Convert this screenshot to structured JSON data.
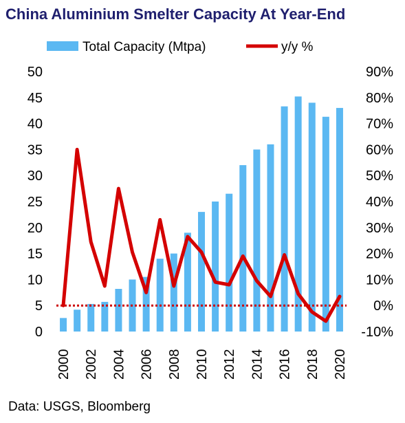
{
  "title": "China Aluminium Smelter Capacity At Year-End",
  "source": "Data: USGS, Bloomberg",
  "colors": {
    "bars": "#5bb8f2",
    "line": "#d40000",
    "zero_line": "#cc0000",
    "title": "#1f1f6e"
  },
  "chart_data": {
    "type": "bar",
    "title": "China Aluminium Smelter Capacity At Year-End",
    "categories": [
      "2000",
      "2001",
      "2002",
      "2003",
      "2004",
      "2005",
      "2006",
      "2007",
      "2008",
      "2009",
      "2010",
      "2011",
      "2012",
      "2013",
      "2014",
      "2015",
      "2016",
      "2017",
      "2018",
      "2019",
      "2020"
    ],
    "x_tick_labels": [
      "2000",
      "2002",
      "2004",
      "2006",
      "2008",
      "2010",
      "2012",
      "2014",
      "2016",
      "2018",
      "2020"
    ],
    "series": [
      {
        "name": "Total Capacity (Mtpa)",
        "type": "bar",
        "axis": "left",
        "values": [
          2.6,
          4.2,
          5.3,
          5.7,
          8.2,
          10,
          10.5,
          14,
          15,
          19,
          23,
          25,
          26.5,
          32,
          35,
          36,
          43.3,
          45.2,
          44,
          41.3,
          43
        ]
      },
      {
        "name": "y/y %",
        "type": "line",
        "axis": "right",
        "values": [
          0,
          60,
          24.5,
          7.5,
          45,
          20.5,
          5,
          33,
          7.5,
          26.5,
          20.5,
          9,
          8,
          19,
          9.5,
          3.5,
          19.5,
          4.5,
          -2.5,
          -6,
          3.5
        ]
      }
    ],
    "left_axis": {
      "ylim": [
        0,
        50
      ],
      "ticks": [
        "0",
        "5",
        "10",
        "15",
        "20",
        "25",
        "30",
        "35",
        "40",
        "45",
        "50"
      ]
    },
    "right_axis": {
      "ylim": [
        -10,
        90
      ],
      "ticks": [
        "-10%",
        "0%",
        "10%",
        "20%",
        "30%",
        "40%",
        "50%",
        "60%",
        "70%",
        "80%",
        "90%"
      ]
    },
    "reference_line": {
      "axis": "right",
      "value": 0,
      "style": "dotted"
    },
    "legend": {
      "position": "top"
    },
    "grid": false
  }
}
